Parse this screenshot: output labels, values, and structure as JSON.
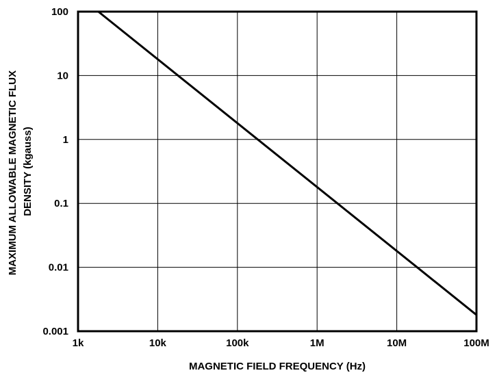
{
  "chart_data": {
    "type": "line",
    "title": "",
    "xlabel": "MAGNETIC FIELD FREQUENCY (Hz)",
    "ylabel_lines": [
      "MAXIMUM ALLOWABLE MAGNETIC FLUX",
      "DENSITY (kgauss)"
    ],
    "x_scale": "log",
    "y_scale": "log",
    "xlim": [
      1000,
      100000000
    ],
    "ylim": [
      0.001,
      100
    ],
    "x_ticks": [
      {
        "value": 1000,
        "label": "1k"
      },
      {
        "value": 10000,
        "label": "10k"
      },
      {
        "value": 100000,
        "label": "100k"
      },
      {
        "value": 1000000,
        "label": "1M"
      },
      {
        "value": 10000000,
        "label": "10M"
      },
      {
        "value": 100000000,
        "label": "100M"
      }
    ],
    "y_ticks": [
      {
        "value": 100,
        "label": "100"
      },
      {
        "value": 10,
        "label": "10"
      },
      {
        "value": 1,
        "label": "1"
      },
      {
        "value": 0.1,
        "label": "0.1"
      },
      {
        "value": 0.01,
        "label": "0.01"
      },
      {
        "value": 0.001,
        "label": "0.001"
      }
    ],
    "grid": true,
    "legend": "none",
    "series": [
      {
        "color": "#000000",
        "x": [
          1800,
          18000,
          180000,
          1800000,
          18000000,
          100000000
        ],
        "y": [
          100,
          10,
          1,
          0.1,
          0.01,
          0.0018
        ]
      }
    ]
  }
}
